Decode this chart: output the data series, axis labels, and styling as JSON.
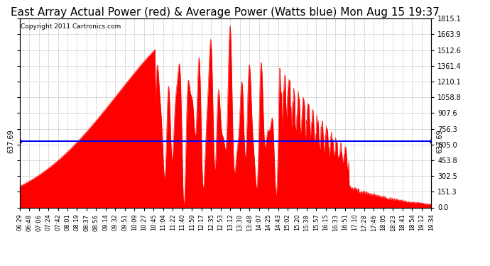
{
  "title": "East Array Actual Power (red) & Average Power (Watts blue) Mon Aug 15 19:37",
  "copyright": "Copyright 2011 Cartronics.com",
  "avg_power": 637.69,
  "ymax": 1815.1,
  "ymin": 0.0,
  "yticks": [
    0.0,
    151.3,
    302.5,
    453.8,
    605.0,
    756.3,
    907.6,
    1058.8,
    1210.1,
    1361.4,
    1512.6,
    1663.9,
    1815.1
  ],
  "avg_label": "637.69",
  "background_color": "#ffffff",
  "grid_color": "#aaaaaa",
  "fill_color": "#ff0000",
  "line_color": "#ff0000",
  "avg_line_color": "#0000ff",
  "title_fontsize": 11,
  "xtick_labels": [
    "06:29",
    "06:48",
    "07:06",
    "07:24",
    "07:42",
    "08:01",
    "08:19",
    "08:37",
    "08:56",
    "09:14",
    "09:32",
    "09:51",
    "10:09",
    "10:27",
    "10:45",
    "11:04",
    "11:22",
    "11:40",
    "11:59",
    "12:17",
    "12:35",
    "12:53",
    "13:12",
    "13:30",
    "13:48",
    "14:07",
    "14:25",
    "14:43",
    "15:02",
    "15:20",
    "15:38",
    "15:57",
    "16:15",
    "16:33",
    "16:51",
    "17:10",
    "17:28",
    "17:46",
    "18:05",
    "18:23",
    "18:41",
    "18:54",
    "19:12",
    "19:34"
  ]
}
